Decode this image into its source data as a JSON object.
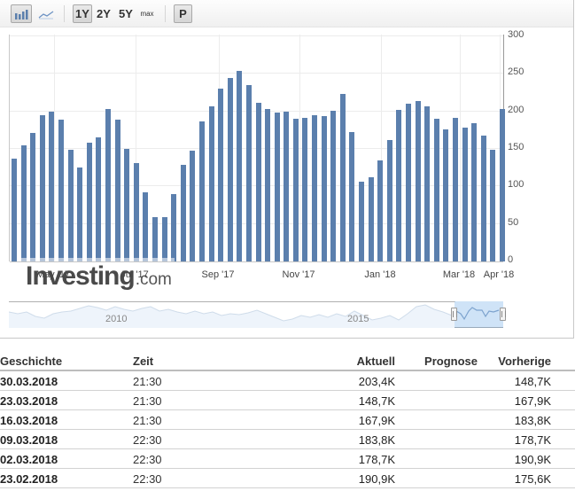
{
  "toolbar": {
    "chart_type_buttons": [
      {
        "name": "bar-chart-icon",
        "active": true
      },
      {
        "name": "line-chart-icon",
        "active": false
      }
    ],
    "ranges": [
      {
        "label": "1Y",
        "active": true
      },
      {
        "label": "2Y",
        "active": false
      },
      {
        "label": "5Y",
        "active": false
      },
      {
        "label": "max",
        "active": false
      }
    ],
    "p_label": "P"
  },
  "logo": {
    "brand": "Investing",
    "domain": ".com"
  },
  "navigator": {
    "labels": [
      "2010",
      "2015"
    ]
  },
  "colors": {
    "bar": "#5b7fad",
    "navigator_selection": "#a0c8f0"
  },
  "chart_data": {
    "type": "bar",
    "title": "",
    "xlabel": "",
    "ylabel": "",
    "ylim": [
      0,
      300
    ],
    "yticks": [
      0,
      50,
      100,
      150,
      200,
      250,
      300
    ],
    "xtick_labels": [
      "May '17",
      "Jul '17",
      "Sep '17",
      "Nov '17",
      "Jan '18",
      "Mar '18",
      "Apr '18"
    ],
    "grid": true,
    "axis_position": "right",
    "frequency": "weekly",
    "values": [
      137,
      155,
      171,
      195,
      200,
      189,
      149,
      125,
      158,
      165,
      203,
      189,
      150,
      131,
      92,
      59,
      59,
      90,
      129,
      148,
      187,
      207,
      230,
      244,
      254,
      235,
      211,
      203,
      198,
      200,
      190,
      191,
      195,
      194,
      201,
      223,
      172,
      106,
      112,
      135,
      162,
      202,
      210,
      214,
      207,
      190,
      175.6,
      190.9,
      178.7,
      183.8,
      167.9,
      148.7,
      203.4
    ]
  },
  "table": {
    "headers": {
      "date": "Geschichte",
      "time": "Zeit",
      "actual": "Aktuell",
      "forecast": "Prognose",
      "previous": "Vorherige"
    },
    "rows": [
      {
        "date": "30.03.2018",
        "time": "21:30",
        "actual": "203,4K",
        "forecast": "",
        "previous": "148,7K"
      },
      {
        "date": "23.03.2018",
        "time": "21:30",
        "actual": "148,7K",
        "forecast": "",
        "previous": "167,9K"
      },
      {
        "date": "16.03.2018",
        "time": "21:30",
        "actual": "167,9K",
        "forecast": "",
        "previous": "183,8K"
      },
      {
        "date": "09.03.2018",
        "time": "22:30",
        "actual": "183,8K",
        "forecast": "",
        "previous": "178,7K"
      },
      {
        "date": "02.03.2018",
        "time": "22:30",
        "actual": "178,7K",
        "forecast": "",
        "previous": "190,9K"
      },
      {
        "date": "23.02.2018",
        "time": "22:30",
        "actual": "190,9K",
        "forecast": "",
        "previous": "175,6K"
      }
    ]
  }
}
